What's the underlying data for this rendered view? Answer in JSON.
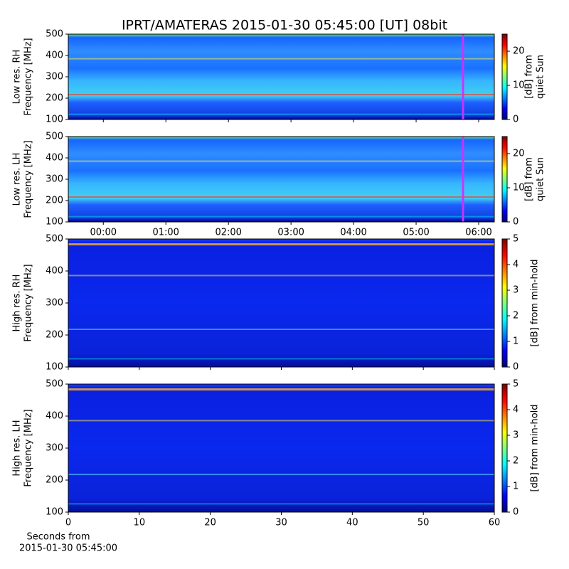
{
  "title": "IPRT/AMATERAS 2015-01-30 05:45:00 [UT]   08bit",
  "chart_data": [
    {
      "type": "heatmap",
      "ylabel": [
        "Low res. RH",
        "Frequency [MHz]"
      ],
      "ylim": [
        100,
        500
      ],
      "yticks": [
        100,
        200,
        300,
        400,
        500
      ],
      "marker_x": 5.75,
      "marker_color": "#cc33ff",
      "colorbar": {
        "label": [
          "[dB] from",
          "quiet Sun"
        ],
        "lim": [
          0,
          25
        ],
        "ticks": [
          0,
          10,
          20
        ]
      }
    },
    {
      "type": "heatmap",
      "ylabel": [
        "Low res. LH",
        "Frequency [MHz]"
      ],
      "ylim": [
        100,
        500
      ],
      "yticks": [
        100,
        200,
        300,
        400,
        500
      ],
      "xlim": [
        -0.56,
        6.25
      ],
      "xticks": [
        {
          "value": 0,
          "label": "00:00"
        },
        {
          "value": 1,
          "label": "01:00"
        },
        {
          "value": 2,
          "label": "02:00"
        },
        {
          "value": 3,
          "label": "03:00"
        },
        {
          "value": 4,
          "label": "04:00"
        },
        {
          "value": 5,
          "label": "05:00"
        },
        {
          "value": 6,
          "label": "06:00"
        }
      ],
      "marker_x": 5.75,
      "marker_color": "#cc33ff",
      "colorbar": {
        "label": [
          "[dB] from",
          "quiet Sun"
        ],
        "lim": [
          0,
          25
        ],
        "ticks": [
          0,
          10,
          20
        ]
      }
    },
    {
      "type": "heatmap",
      "ylabel": [
        "High res. RH",
        "Frequency [MHz]"
      ],
      "ylim": [
        100,
        500
      ],
      "yticks": [
        100,
        200,
        300,
        400,
        500
      ],
      "colorbar": {
        "label": [
          "[dB] from min-hold"
        ],
        "lim": [
          0,
          5
        ],
        "ticks": [
          0,
          1,
          2,
          3,
          4,
          5
        ]
      }
    },
    {
      "type": "heatmap",
      "ylabel": [
        "High res. LH",
        "Frequency [MHz]"
      ],
      "ylim": [
        100,
        500
      ],
      "yticks": [
        100,
        200,
        300,
        400,
        500
      ],
      "xlim": [
        0,
        60
      ],
      "xticks": [
        0,
        10,
        20,
        30,
        40,
        50,
        60
      ],
      "xlabel": [
        "Seconds from",
        "2015-01-30 05:45:00"
      ],
      "colorbar": {
        "label": [
          "[dB] from min-hold"
        ],
        "lim": [
          0,
          5
        ],
        "ticks": [
          0,
          1,
          2,
          3,
          4,
          5
        ]
      }
    }
  ]
}
